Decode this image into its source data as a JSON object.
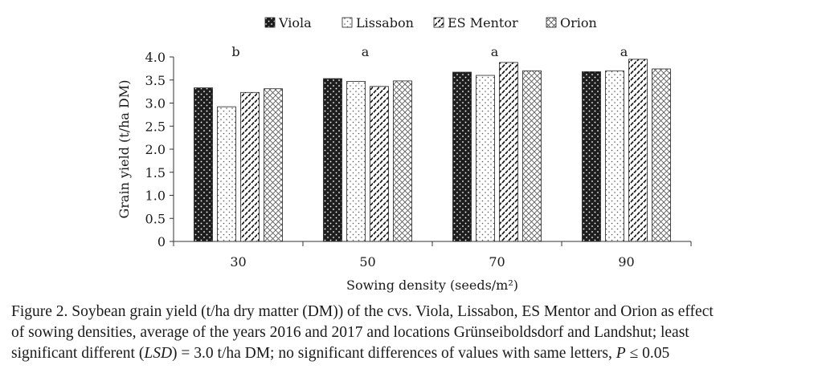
{
  "chart_data": {
    "type": "bar",
    "title": "",
    "xlabel": "Sowing density (seeds/m²)",
    "ylabel": "Grain yield  (t/ha DM)",
    "ylim": [
      0,
      4.0
    ],
    "yticks": [
      "0",
      "0.5",
      "1.0",
      "1.5",
      "2.0",
      "2.5",
      "3.0",
      "3.5",
      "4.0"
    ],
    "categories": [
      "30",
      "50",
      "70",
      "90"
    ],
    "group_letters": [
      "b",
      "a",
      "a",
      "a"
    ],
    "series": [
      {
        "name": "Viola",
        "pattern": "dark-dots",
        "values": [
          3.33,
          3.53,
          3.67,
          3.68
        ]
      },
      {
        "name": "Lissabon",
        "pattern": "light-dots",
        "values": [
          2.92,
          3.47,
          3.6,
          3.7
        ]
      },
      {
        "name": "ES Mentor",
        "pattern": "dashes",
        "values": [
          3.23,
          3.36,
          3.88,
          3.95
        ]
      },
      {
        "name": "Orion",
        "pattern": "crosshatch",
        "values": [
          3.31,
          3.48,
          3.7,
          3.74
        ]
      }
    ],
    "legend_position": "top"
  },
  "caption": {
    "line1": "Figure 2. Soybean grain yield (t/ha dry matter (DM)) of the cvs. Viola, Lissabon, ES Mentor and Orion as effect",
    "line2": "of sowing densities, average of the years 2016 and 2017 and locations Grünseiboldsdorf and Landshut; least",
    "line3a": "significant different (",
    "line3b": "LSD",
    "line3c": ") = 3.0 t/ha DM; no significant differences of values with same letters, ",
    "line3d": "P",
    "line3e": " ≤ 0.05"
  },
  "colors": {
    "text": "#1a1a1a",
    "axis": "#333333",
    "bar_dark": "#1e1e1e"
  }
}
